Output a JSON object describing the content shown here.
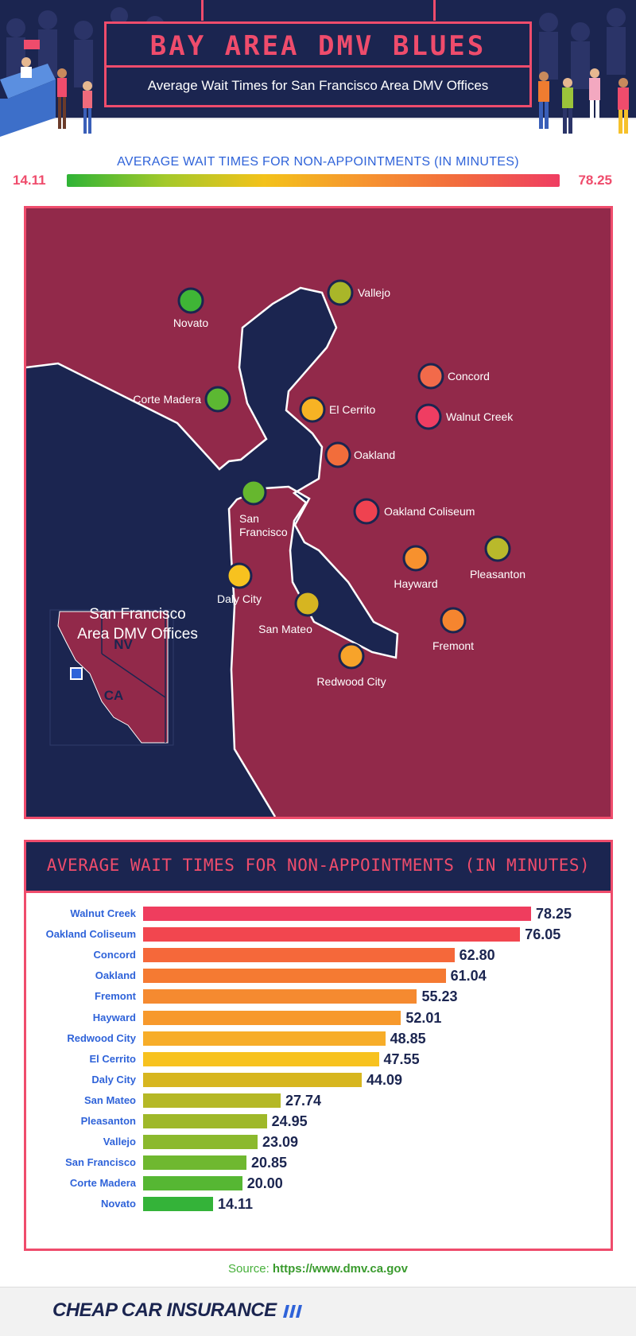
{
  "header": {
    "title": "BAY AREA DMV BLUES",
    "subtitle": "Average Wait Times for San Francisco Area DMV Offices"
  },
  "legend": {
    "title": "AVERAGE WAIT TIMES FOR NON-APPOINTMENTS (IN MINUTES)",
    "min": "14.11",
    "max": "78.25"
  },
  "map": {
    "inset_title_line1": "San Francisco",
    "inset_title_line2": "Area DMV Offices",
    "inset_nv": "NV",
    "inset_ca": "CA",
    "offices": [
      {
        "name": "Novato",
        "color": "#3fb536"
      },
      {
        "name": "Vallejo",
        "color": "#a9b629"
      },
      {
        "name": "Corte Madera",
        "color": "#5cb832"
      },
      {
        "name": "El Cerrito",
        "color": "#f7b324"
      },
      {
        "name": "Concord",
        "color": "#f26a4a"
      },
      {
        "name": "Walnut Creek",
        "color": "#ef3d62"
      },
      {
        "name": "Oakland",
        "color": "#f26d3b"
      },
      {
        "name": "San Francisco",
        "color": "#66b72e"
      },
      {
        "name": "Oakland Coliseum",
        "color": "#ef4250"
      },
      {
        "name": "Hayward",
        "color": "#f7912e"
      },
      {
        "name": "Pleasanton",
        "color": "#b9b92b"
      },
      {
        "name": "Daly City",
        "color": "#f7c21f"
      },
      {
        "name": "San Mateo",
        "color": "#d6b521"
      },
      {
        "name": "Fremont",
        "color": "#f5852f"
      },
      {
        "name": "Redwood City",
        "color": "#f7a32a"
      }
    ]
  },
  "chart_data": {
    "type": "bar",
    "orientation": "horizontal",
    "title": "AVERAGE WAIT TIMES FOR NON-APPOINTMENTS (IN MINUTES)",
    "xlabel": "",
    "ylabel": "",
    "xlim": [
      0,
      78.25
    ],
    "categories": [
      "Walnut Creek",
      "Oakland Coliseum",
      "Concord",
      "Oakland",
      "Fremont",
      "Hayward",
      "Redwood City",
      "El Cerrito",
      "Daly City",
      "San Mateo",
      "Pleasanton",
      "Vallejo",
      "San Francisco",
      "Corte Madera",
      "Novato"
    ],
    "values": [
      78.25,
      76.05,
      62.8,
      61.04,
      55.23,
      52.01,
      48.85,
      47.55,
      44.09,
      27.74,
      24.95,
      23.09,
      20.85,
      20.0,
      14.11
    ],
    "value_labels": [
      "78.25",
      "76.05",
      "62.80",
      "61.04",
      "55.23",
      "52.01",
      "48.85",
      "47.55",
      "44.09",
      "27.74",
      "24.95",
      "23.09",
      "20.85",
      "20.00",
      "14.11"
    ],
    "colors": [
      "#ef3d5e",
      "#f2464f",
      "#f5683a",
      "#f57a32",
      "#f58a30",
      "#f7992c",
      "#f7ad29",
      "#f7c21f",
      "#d7b61f",
      "#b5b826",
      "#9fb829",
      "#8bb92d",
      "#6fb830",
      "#56b733",
      "#34b339"
    ]
  },
  "source": {
    "prefix": "Source:",
    "url": "https://www.dmv.ca.gov"
  },
  "footer": {
    "brand": "CHEAP CAR INSURANCE"
  }
}
